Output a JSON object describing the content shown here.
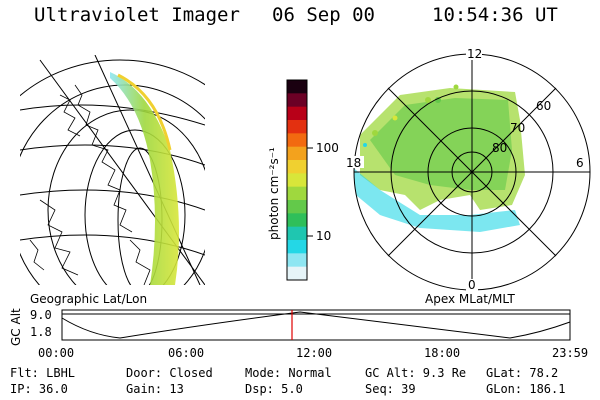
{
  "header": {
    "title": "Ultraviolet Imager",
    "date": "06 Sep 00",
    "time": "10:54:36 UT"
  },
  "colorbar": {
    "unit_label": "photon cm⁻²s⁻¹",
    "ticks": [
      "100",
      "10"
    ],
    "colors": [
      "#1a0010",
      "#6b0025",
      "#b80018",
      "#e33010",
      "#f26a10",
      "#f3a21d",
      "#f0d030",
      "#d8e63a",
      "#9fd83e",
      "#63c94a",
      "#2fbf5a",
      "#1fc6b0",
      "#24d7e6",
      "#8ee6f2",
      "#e6f4f8"
    ]
  },
  "left_panel": {
    "projection_label": "Geographic Lat/Lon"
  },
  "polar_panel": {
    "projection_label": "Apex  MLat/MLT",
    "mlt_labels": {
      "top": "12",
      "left": "18",
      "right": "6",
      "bottom": "0"
    },
    "lat_labels": [
      "60",
      "70",
      "80"
    ]
  },
  "altitude_strip": {
    "y_label": "GC Alt",
    "y_ticks": [
      "9.0",
      "1.8"
    ],
    "x_ticks": [
      "00:00",
      "06:00",
      "12:00",
      "18:00",
      "23:59"
    ],
    "marker_color": "#e00000"
  },
  "info": {
    "flt": "Flt: LBHL",
    "ip": "IP: 36.0",
    "door": "Door: Closed",
    "gain": "Gain: 13",
    "mode": "Mode: Normal",
    "dsp": "Dsp:    5.0",
    "gcalt": "GC Alt: 9.3 Re",
    "seq": "Seq: 39",
    "glat": "GLat:  78.2",
    "glon": "GLon: 186.1"
  }
}
